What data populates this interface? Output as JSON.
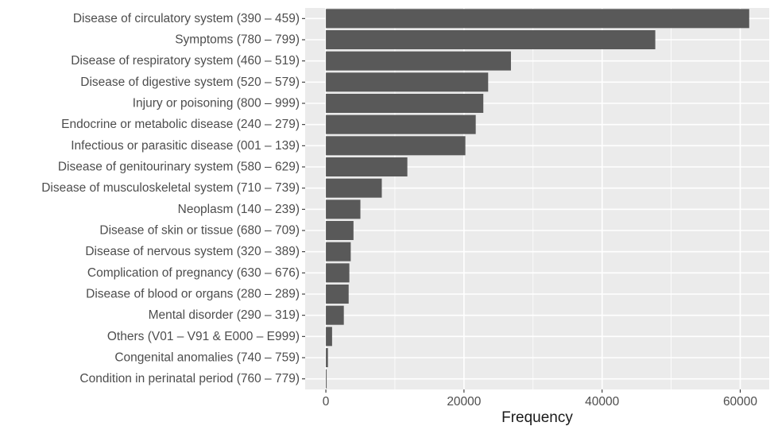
{
  "chart_data": {
    "type": "bar",
    "orientation": "horizontal",
    "categories": [
      "Disease of circulatory system (390 – 459)",
      "Symptoms (780 – 799)",
      "Disease of respiratory system (460 – 519)",
      "Disease of digestive system (520 – 579)",
      "Injury or poisoning (800 – 999)",
      "Endocrine or metabolic disease (240 – 279)",
      "Infectious or parasitic disease (001 – 139)",
      "Disease of genitourinary system (580 – 629)",
      "Disease of musculoskeletal system (710 – 739)",
      "Neoplasm (140 – 239)",
      "Disease of skin or tissue (680 – 709)",
      "Disease of nervous system (320 – 389)",
      "Complication of pregnancy (630 – 676)",
      "Disease of blood or organs (280 – 289)",
      "Mental disorder (290 – 319)",
      "Others (V01 – V91 & E000 – E999)",
      "Congenital anomalies (740 – 759)",
      "Condition in perinatal period (760 – 779)"
    ],
    "values": [
      61300,
      47700,
      26800,
      23500,
      22800,
      21700,
      20200,
      11800,
      8100,
      5000,
      4000,
      3600,
      3400,
      3300,
      2600,
      900,
      300,
      100
    ],
    "xlabel": "Frequency",
    "ylabel": "",
    "xlim": [
      -3000,
      64200
    ],
    "xticks": [
      0,
      20000,
      40000,
      60000
    ],
    "xtick_labels": [
      "0",
      "20000",
      "40000",
      "60000"
    ],
    "grid": true,
    "style": {
      "panel_bg": "#ebebeb",
      "grid_major": "#ffffff",
      "bar_fill": "#595959",
      "tick_color": "#333333"
    }
  }
}
